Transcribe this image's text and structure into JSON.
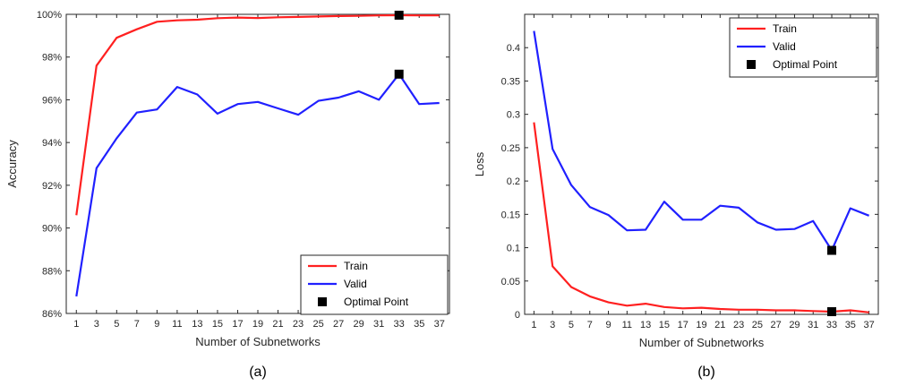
{
  "chart_data": [
    {
      "type": "line",
      "caption": "(a)",
      "xlabel": "Number of Subnetworks",
      "ylabel": "Accuracy",
      "x": [
        1,
        3,
        5,
        7,
        9,
        11,
        13,
        15,
        17,
        19,
        21,
        23,
        25,
        27,
        29,
        31,
        33,
        35,
        37
      ],
      "xticks": [
        "1",
        "3",
        "5",
        "7",
        "9",
        "11",
        "13",
        "15",
        "17",
        "19",
        "21",
        "23",
        "25",
        "27",
        "29",
        "31",
        "33",
        "35",
        "37"
      ],
      "xlim": [
        0,
        38
      ],
      "ylim": [
        86,
        100
      ],
      "yticks": [
        86,
        88,
        90,
        92,
        94,
        96,
        98,
        100
      ],
      "ytick_labels": [
        "86%",
        "88%",
        "90%",
        "92%",
        "94%",
        "96%",
        "98%",
        "100%"
      ],
      "series": [
        {
          "name": "Train",
          "color": "#ff2020",
          "values": [
            90.6,
            97.6,
            98.9,
            99.3,
            99.65,
            99.72,
            99.75,
            99.82,
            99.85,
            99.83,
            99.86,
            99.88,
            99.9,
            99.92,
            99.93,
            99.95,
            99.96,
            99.95,
            99.95
          ]
        },
        {
          "name": "Valid",
          "color": "#2020ff",
          "values": [
            86.8,
            92.8,
            94.2,
            95.4,
            95.55,
            96.6,
            96.25,
            95.35,
            95.8,
            95.9,
            95.6,
            95.3,
            95.95,
            96.1,
            96.4,
            96.0,
            97.2,
            95.8,
            95.85
          ]
        }
      ],
      "optimal_points": [
        {
          "x": 33,
          "y": 99.96
        },
        {
          "x": 33,
          "y": 97.2
        }
      ],
      "legend": {
        "position": "bottom-right",
        "entries": [
          "Train",
          "Valid",
          "Optimal Point"
        ]
      }
    },
    {
      "type": "line",
      "caption": "(b)",
      "xlabel": "Number of Subnetworks",
      "ylabel": "Loss",
      "x": [
        1,
        3,
        5,
        7,
        9,
        11,
        13,
        15,
        17,
        19,
        21,
        23,
        25,
        27,
        29,
        31,
        33,
        35,
        37
      ],
      "xticks": [
        "1",
        "3",
        "5",
        "7",
        "9",
        "11",
        "13",
        "15",
        "17",
        "19",
        "21",
        "23",
        "25",
        "27",
        "29",
        "31",
        "33",
        "35",
        "37"
      ],
      "xlim": [
        0,
        38
      ],
      "ylim": [
        0,
        0.45
      ],
      "yticks": [
        0,
        0.05,
        0.1,
        0.15,
        0.2,
        0.25,
        0.3,
        0.35,
        0.4
      ],
      "ytick_labels": [
        "0",
        "0.05",
        "0.1",
        "0.15",
        "0.2",
        "0.25",
        "0.3",
        "0.35",
        "0.4"
      ],
      "series": [
        {
          "name": "Train",
          "color": "#ff2020",
          "values": [
            0.288,
            0.072,
            0.041,
            0.027,
            0.018,
            0.013,
            0.016,
            0.011,
            0.009,
            0.01,
            0.008,
            0.007,
            0.007,
            0.006,
            0.006,
            0.005,
            0.004,
            0.006,
            0.003
          ]
        },
        {
          "name": "Valid",
          "color": "#2020ff",
          "values": [
            0.425,
            0.248,
            0.194,
            0.161,
            0.149,
            0.126,
            0.127,
            0.169,
            0.142,
            0.142,
            0.163,
            0.16,
            0.138,
            0.127,
            0.128,
            0.14,
            0.096,
            0.159,
            0.148
          ]
        }
      ],
      "optimal_points": [
        {
          "x": 33,
          "y": 0.004
        },
        {
          "x": 33,
          "y": 0.096
        }
      ],
      "legend": {
        "position": "top-right",
        "entries": [
          "Train",
          "Valid",
          "Optimal Point"
        ]
      }
    }
  ]
}
